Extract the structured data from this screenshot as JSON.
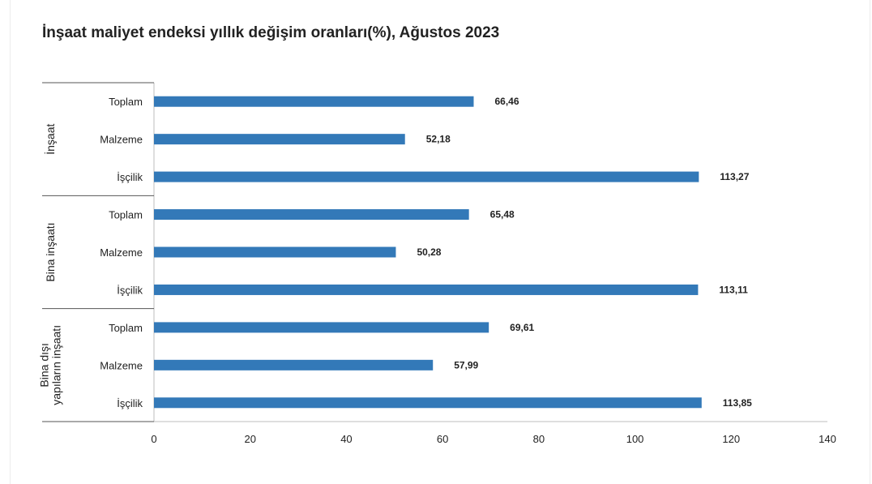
{
  "title": "İnşaat maliyet endeksi yıllık değişim oranları(%), Ağustos 2023",
  "colors": {
    "bar": "#3379b8",
    "axis": "#bdbdbd",
    "group_line": "#555555",
    "text": "#222222"
  },
  "chart_data": {
    "type": "bar",
    "orientation": "horizontal",
    "title": "İnşaat maliyet endeksi yıllık değişim oranları(%), Ağustos 2023",
    "xlabel": "",
    "ylabel": "",
    "xlim": [
      0,
      140
    ],
    "x_ticks": [
      0,
      20,
      40,
      60,
      80,
      100,
      120,
      140
    ],
    "grid": false,
    "groups": [
      {
        "name": "İnşaat",
        "categories": [
          "Toplam",
          "Malzeme",
          "İşçilik"
        ],
        "values": [
          66.46,
          52.18,
          113.27
        ],
        "labels": [
          "66,46",
          "52,18",
          "113,27"
        ]
      },
      {
        "name": "Bina inşaatı",
        "categories": [
          "Toplam",
          "Malzeme",
          "İşçilik"
        ],
        "values": [
          65.48,
          50.28,
          113.11
        ],
        "labels": [
          "65,48",
          "50,28",
          "113,11"
        ]
      },
      {
        "name": "Bina dışı yapıların inşaatı",
        "name_lines": [
          "Bina dışı",
          "yapıların inşaatı"
        ],
        "categories": [
          "Toplam",
          "Malzeme",
          "İşçilik"
        ],
        "values": [
          69.61,
          57.99,
          113.85
        ],
        "labels": [
          "69,61",
          "57,99",
          "113,85"
        ]
      }
    ]
  }
}
